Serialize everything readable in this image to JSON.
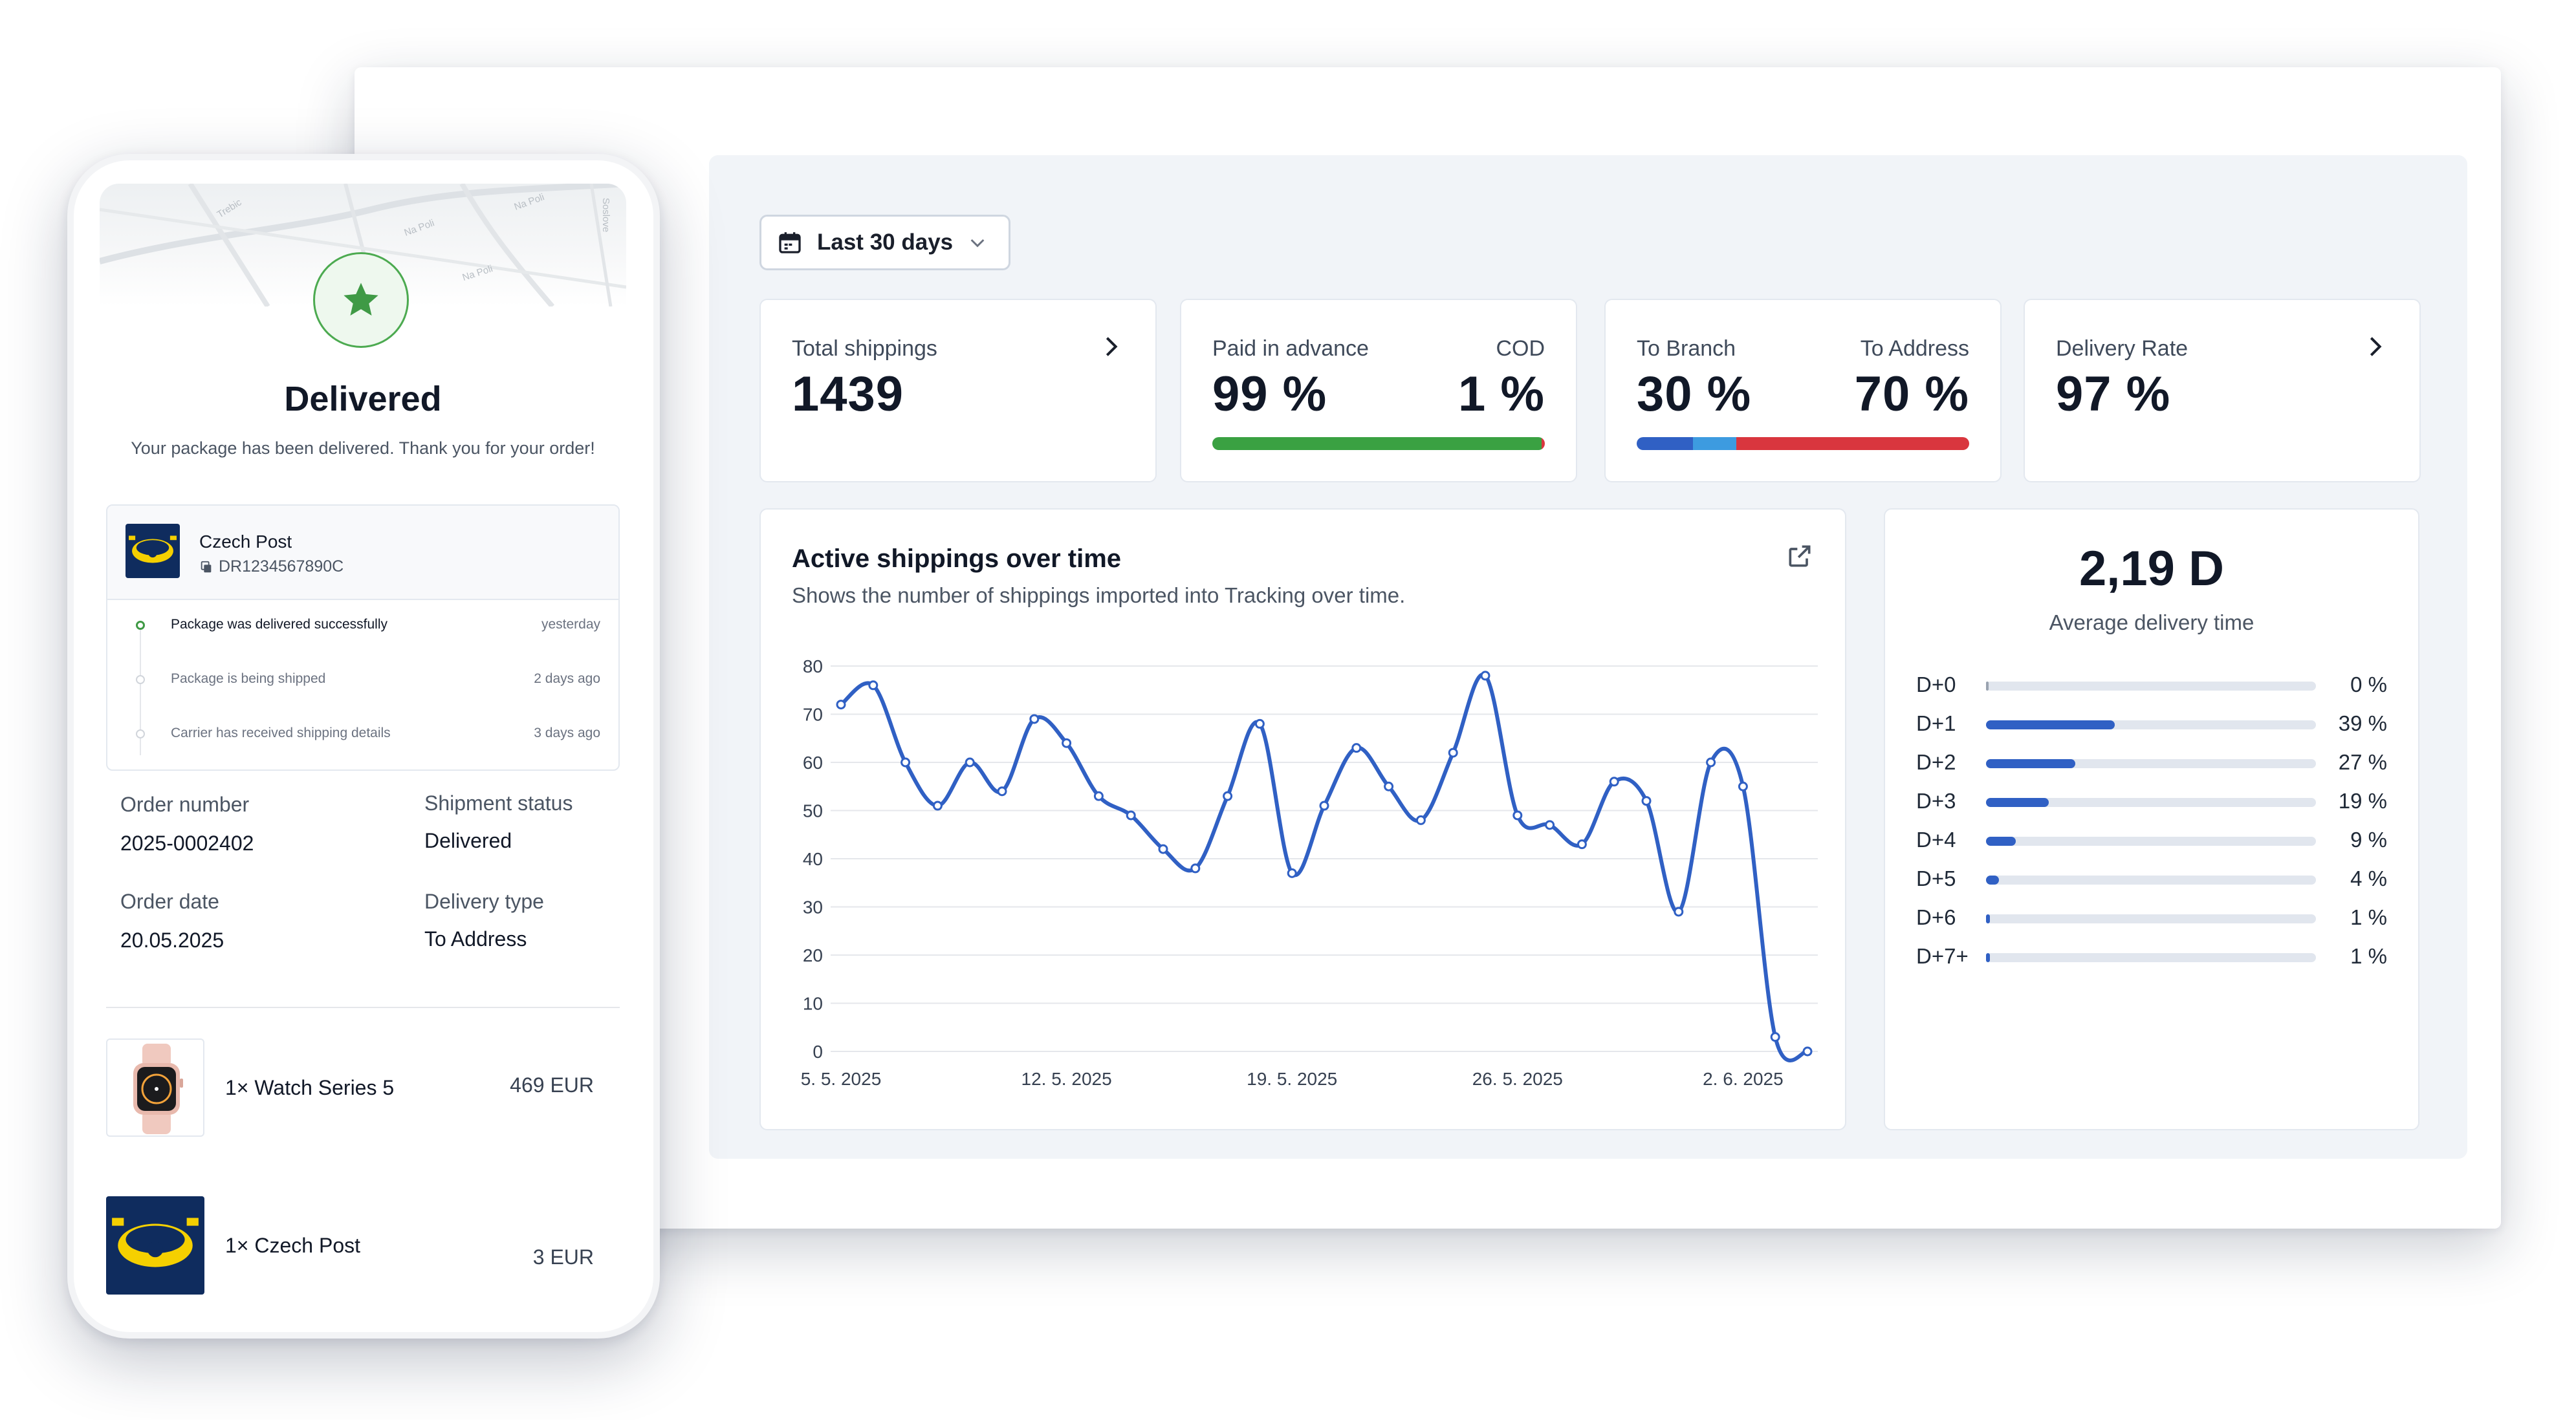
{
  "dashboard": {
    "date_range": "Last 30 days",
    "kpis": {
      "total_shippings": {
        "label": "Total shippings",
        "value": "1439"
      },
      "payment": {
        "label_left": "Paid in advance",
        "label_right": "COD",
        "value_left": "99 %",
        "value_right": "1 %",
        "bar_fraction_left": 0.99,
        "color_left": "#3aa142",
        "color_right": "#d9363e"
      },
      "delivery_type": {
        "label_left": "To Branch",
        "label_right": "To Address",
        "value_left": "30 %",
        "value_right": "70 %",
        "segments": [
          {
            "fraction": 0.17,
            "color": "#3060c4"
          },
          {
            "fraction": 0.13,
            "color": "#3d9be0"
          },
          {
            "fraction": 0.7,
            "color": "#d9363e"
          }
        ]
      },
      "delivery_rate": {
        "label": "Delivery Rate",
        "value": "97 %"
      }
    },
    "chart": {
      "title": "Active shippings over time",
      "subtitle": "Shows the number of shippings imported into Tracking over time."
    },
    "avg_delivery": {
      "value": "2,19 D",
      "label": "Average delivery time",
      "rows": [
        {
          "label": "D+0",
          "value": 0,
          "text": "0 %"
        },
        {
          "label": "D+1",
          "value": 39,
          "text": "39 %"
        },
        {
          "label": "D+2",
          "value": 27,
          "text": "27 %"
        },
        {
          "label": "D+3",
          "value": 19,
          "text": "19 %"
        },
        {
          "label": "D+4",
          "value": 9,
          "text": "9 %"
        },
        {
          "label": "D+5",
          "value": 4,
          "text": "4 %"
        },
        {
          "label": "D+6",
          "value": 1,
          "text": "1 %"
        },
        {
          "label": "D+7+",
          "value": 1,
          "text": "1 %"
        }
      ],
      "bar_color": "#3060c4"
    }
  },
  "chart_data": {
    "type": "line",
    "title": "Active shippings over time",
    "xlabel": "",
    "ylabel": "",
    "ylim": [
      0,
      80
    ],
    "yticks": [
      0,
      10,
      20,
      30,
      40,
      50,
      60,
      70,
      80
    ],
    "x_tick_labels": [
      "5. 5. 2025",
      "12. 5. 2025",
      "19. 5. 2025",
      "26. 5. 2025",
      "2. 6. 2025"
    ],
    "x_tick_index": [
      0,
      7,
      14,
      21,
      28
    ],
    "grid": true,
    "color": "#3060c4",
    "series": [
      {
        "values": [
          72,
          76,
          60,
          51,
          60,
          54,
          69,
          64,
          53,
          49,
          42,
          38,
          53,
          68,
          37,
          51,
          63,
          55,
          48,
          62,
          78,
          49,
          47,
          43,
          56,
          52,
          29,
          60,
          55,
          3,
          0
        ]
      }
    ]
  },
  "phone": {
    "title": "Delivered",
    "subtitle": "Your package has been delivered. Thank you for your order!",
    "map_streets": [
      "Trebic",
      "Na Poli",
      "Na Poli",
      "Na Poli",
      "Soslove"
    ],
    "carrier": {
      "name": "Czech Post",
      "tracking_code": "DR1234567890C"
    },
    "timeline": [
      {
        "text": "Package was delivered successfully",
        "time": "yesterday",
        "active": true
      },
      {
        "text": "Package is being shipped",
        "time": "2 days ago",
        "active": false
      },
      {
        "text": "Carrier has received shipping details",
        "time": "3 days ago",
        "active": false
      }
    ],
    "order_number_label": "Order number",
    "order_number": "2025-0002402",
    "shipment_status_label": "Shipment status",
    "shipment_status": "Delivered",
    "order_date_label": "Order date",
    "order_date": "20.05.2025",
    "delivery_type_label": "Delivery type",
    "delivery_type": "To Address",
    "items": [
      {
        "name": "1× Watch Series 5",
        "price": "469 EUR"
      },
      {
        "name": "1× Czech Post",
        "price": "3 EUR"
      }
    ],
    "brand_colors": {
      "navy": "#0f2c5e",
      "yellow": "#f5d000",
      "green": "#4caa50"
    }
  }
}
